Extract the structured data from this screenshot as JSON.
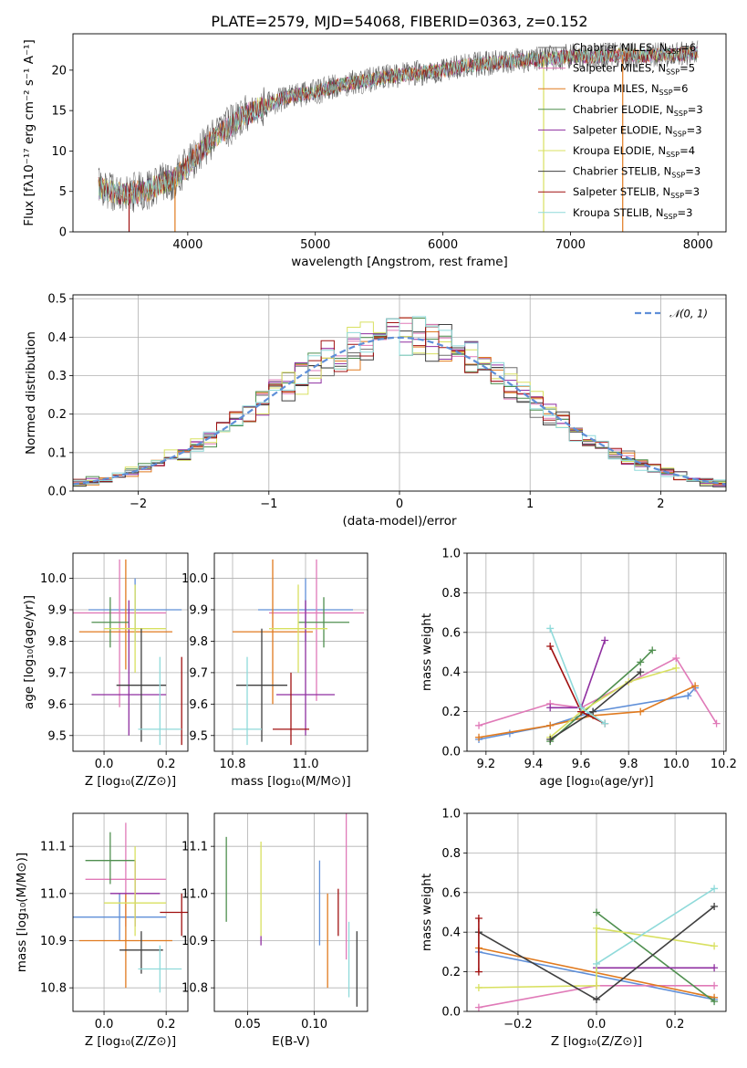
{
  "figure": {
    "title": "PLATE=2579, MJD=54068, FIBERID=0363, z=0.152"
  },
  "colors": {
    "chabrier_miles": "#6f6f6f",
    "salpeter_miles": "#e07ab8",
    "kroupa_miles": "#e07a1f",
    "chabrier_elodie": "#4f8f4f",
    "salpeter_elodie": "#8f2fa0",
    "kroupa_elodie": "#d8e060",
    "chabrier_stelib": "#3f3f3f",
    "salpeter_stelib": "#a01010",
    "kroupa_stelib": "#8fdada",
    "normal": "#5f8fd8"
  },
  "chart_data": [
    {
      "id": "spectrum",
      "type": "line",
      "xlabel": "wavelength [Angstrom, rest frame]",
      "ylabel": "Flux [fλ10⁻¹⁷ erg cm⁻² s⁻¹ A⁻¹]",
      "xlim": [
        3100,
        8220
      ],
      "ylim": [
        0,
        24.5
      ],
      "xticks": [
        "4000",
        "5000",
        "6000",
        "7000",
        "8000"
      ],
      "yticks": [
        "0",
        "5",
        "10",
        "15",
        "20"
      ],
      "grid": false,
      "legend_position": "top-right",
      "continuum": {
        "x": [
          3300,
          3500,
          3700,
          3800,
          3900,
          4000,
          4100,
          4200,
          4400,
          4600,
          4800,
          5000,
          5200,
          5400,
          5600,
          5800,
          6000,
          6200,
          6400,
          6600,
          6800,
          7000,
          7200,
          7400,
          7600,
          7800,
          8000
        ],
        "y": [
          5.4,
          4.6,
          5.2,
          6.0,
          6.6,
          8.2,
          10.0,
          11.5,
          14.0,
          15.6,
          16.8,
          17.3,
          18.2,
          18.7,
          19.3,
          19.6,
          20.0,
          20.6,
          20.9,
          21.2,
          21.4,
          21.7,
          21.7,
          21.9,
          21.8,
          21.9,
          22.1
        ]
      },
      "series": [
        {
          "name": "Chabrier MILES, N",
          "sub": "SSP",
          "suffix": "=6",
          "color_key": "chabrier_miles"
        },
        {
          "name": "Salpeter MILES, N",
          "sub": "SSP",
          "suffix": "=5",
          "color_key": "salpeter_miles"
        },
        {
          "name": "Kroupa MILES, N",
          "sub": "SSP",
          "suffix": "=6",
          "color_key": "kroupa_miles"
        },
        {
          "name": "Chabrier ELODIE, N",
          "sub": "SSP",
          "suffix": "=3",
          "color_key": "chabrier_elodie"
        },
        {
          "name": "Salpeter ELODIE, N",
          "sub": "SSP",
          "suffix": "=3",
          "color_key": "salpeter_elodie"
        },
        {
          "name": "Kroupa ELODIE, N",
          "sub": "SSP",
          "suffix": "=4",
          "color_key": "kroupa_elodie"
        },
        {
          "name": "Chabrier STELIB, N",
          "sub": "SSP",
          "suffix": "=3",
          "color_key": "chabrier_stelib"
        },
        {
          "name": "Salpeter STELIB, N",
          "sub": "SSP",
          "suffix": "=3",
          "color_key": "salpeter_stelib"
        },
        {
          "name": "Kroupa STELIB, N",
          "sub": "SSP",
          "suffix": "=3",
          "color_key": "kroupa_stelib"
        }
      ],
      "drops": [
        {
          "x": 3540,
          "color_key": "salpeter_stelib"
        },
        {
          "x": 3900,
          "color_key": "kroupa_miles"
        },
        {
          "x": 6790,
          "color_key": "kroupa_elodie"
        },
        {
          "x": 7410,
          "color_key": "kroupa_miles"
        }
      ]
    },
    {
      "id": "residuals",
      "type": "histogram",
      "xlabel": "(data-model)/error",
      "ylabel": "Normed distribution",
      "xlim": [
        -2.5,
        2.5
      ],
      "ylim": [
        0,
        0.51
      ],
      "xticks": [
        "−2",
        "−1",
        "0",
        "1",
        "2"
      ],
      "yticks": [
        "0.0",
        "0.1",
        "0.2",
        "0.3",
        "0.4",
        "0.5"
      ],
      "grid": true,
      "legend_position": "top-right",
      "bin_width": 0.1,
      "normal_curve": {
        "name": "𝒩(0, 1)",
        "color_key": "normal"
      }
    },
    {
      "id": "age_vs_Z",
      "type": "errorbar",
      "xlabel": "Z [log₁₀(Z/Z⊙)]",
      "ylabel": "age  [log₁₀(age/yr)]",
      "xlim": [
        -0.1,
        0.27
      ],
      "ylim": [
        9.45,
        10.08
      ],
      "xticks": [
        "0.0",
        "0.2"
      ],
      "yticks": [
        "9.5",
        "9.6",
        "9.7",
        "9.8",
        "9.9",
        "10.0"
      ],
      "grid": true,
      "points": [
        {
          "x": 0.1,
          "xerr": 0.15,
          "y": 9.9,
          "yerr_lo": 0.1,
          "yerr_hi": 0.1,
          "color_key": "normal"
        },
        {
          "x": 0.05,
          "xerr": 0.15,
          "y": 9.89,
          "yerr_lo": 0.3,
          "yerr_hi": 0.17,
          "color_key": "salpeter_miles"
        },
        {
          "x": 0.07,
          "xerr": 0.15,
          "y": 9.83,
          "yerr_lo": 0.12,
          "yerr_hi": 0.23,
          "color_key": "kroupa_miles"
        },
        {
          "x": 0.02,
          "xerr": 0.06,
          "y": 9.86,
          "yerr_lo": 0.08,
          "yerr_hi": 0.08,
          "color_key": "chabrier_elodie"
        },
        {
          "x": 0.08,
          "xerr": 0.12,
          "y": 9.63,
          "yerr_lo": 0.13,
          "yerr_hi": 0.3,
          "color_key": "salpeter_elodie"
        },
        {
          "x": 0.1,
          "xerr": 0.1,
          "y": 9.84,
          "yerr_lo": 0.14,
          "yerr_hi": 0.14,
          "color_key": "kroupa_elodie"
        },
        {
          "x": 0.12,
          "xerr": 0.08,
          "y": 9.66,
          "yerr_lo": 0.18,
          "yerr_hi": 0.18,
          "color_key": "chabrier_stelib"
        },
        {
          "x": 0.25,
          "xerr": 0.0,
          "y": 9.52,
          "yerr_lo": 0.05,
          "yerr_hi": 0.23,
          "color_key": "salpeter_stelib"
        },
        {
          "x": 0.18,
          "xerr": 0.07,
          "y": 9.52,
          "yerr_lo": 0.05,
          "yerr_hi": 0.23,
          "color_key": "kroupa_stelib"
        }
      ]
    },
    {
      "id": "age_vs_mass",
      "type": "errorbar",
      "xlabel": "mass [log₁₀(M/M⊙)]",
      "ylabel": "",
      "xlim": [
        10.75,
        11.17
      ],
      "ylim": [
        9.45,
        10.08
      ],
      "xticks": [
        "10.8",
        "11.0"
      ],
      "yticks": [
        "9.5",
        "9.6",
        "9.7",
        "9.8",
        "9.9",
        "10.0"
      ],
      "grid": true,
      "points": [
        {
          "x": 11.0,
          "xerr": 0.13,
          "y": 9.9,
          "yerr_lo": 0.1,
          "yerr_hi": 0.1,
          "color_key": "normal"
        },
        {
          "x": 11.03,
          "xerr": 0.13,
          "y": 9.89,
          "yerr_lo": 0.28,
          "yerr_hi": 0.17,
          "color_key": "salpeter_miles"
        },
        {
          "x": 10.91,
          "xerr": 0.11,
          "y": 9.83,
          "yerr_lo": 0.23,
          "yerr_hi": 0.23,
          "color_key": "kroupa_miles"
        },
        {
          "x": 11.05,
          "xerr": 0.07,
          "y": 9.86,
          "yerr_lo": 0.08,
          "yerr_hi": 0.08,
          "color_key": "chabrier_elodie"
        },
        {
          "x": 11.0,
          "xerr": 0.08,
          "y": 9.63,
          "yerr_lo": 0.13,
          "yerr_hi": 0.3,
          "color_key": "salpeter_elodie"
        },
        {
          "x": 10.98,
          "xerr": 0.08,
          "y": 9.84,
          "yerr_lo": 0.14,
          "yerr_hi": 0.14,
          "color_key": "kroupa_elodie"
        },
        {
          "x": 10.88,
          "xerr": 0.07,
          "y": 9.66,
          "yerr_lo": 0.18,
          "yerr_hi": 0.18,
          "color_key": "chabrier_stelib"
        },
        {
          "x": 10.96,
          "xerr": 0.05,
          "y": 9.52,
          "yerr_lo": 0.05,
          "yerr_hi": 0.18,
          "color_key": "salpeter_stelib"
        },
        {
          "x": 10.84,
          "xerr": 0.04,
          "y": 9.52,
          "yerr_lo": 0.05,
          "yerr_hi": 0.23,
          "color_key": "kroupa_stelib"
        }
      ]
    },
    {
      "id": "weight_vs_age",
      "type": "line",
      "xlabel": "age  [log₁₀(age/yr)]",
      "ylabel": "mass weight",
      "xlim": [
        9.12,
        10.21
      ],
      "ylim": [
        0,
        1
      ],
      "xticks": [
        "9.2",
        "9.4",
        "9.6",
        "9.8",
        "10.0",
        "10.2"
      ],
      "yticks": [
        "0.0",
        "0.2",
        "0.4",
        "0.6",
        "0.8",
        "1.0"
      ],
      "grid": true,
      "series": [
        {
          "color_key": "normal",
          "x": [
            9.17,
            9.3,
            9.47,
            9.65,
            10.05,
            10.08
          ],
          "y": [
            0.06,
            0.09,
            0.13,
            0.2,
            0.28,
            0.32
          ]
        },
        {
          "color_key": "salpeter_miles",
          "x": [
            9.17,
            9.47,
            9.6,
            10.0,
            10.17
          ],
          "y": [
            0.13,
            0.24,
            0.22,
            0.47,
            0.14
          ]
        },
        {
          "color_key": "kroupa_miles",
          "x": [
            9.17,
            9.47,
            9.65,
            9.85,
            10.08
          ],
          "y": [
            0.07,
            0.13,
            0.18,
            0.2,
            0.33
          ]
        },
        {
          "color_key": "chabrier_elodie",
          "x": [
            9.47,
            9.85,
            9.9
          ],
          "y": [
            0.05,
            0.45,
            0.51
          ]
        },
        {
          "color_key": "salpeter_elodie",
          "x": [
            9.47,
            9.6,
            9.7
          ],
          "y": [
            0.22,
            0.22,
            0.56
          ]
        },
        {
          "color_key": "kroupa_elodie",
          "x": [
            9.47,
            9.6,
            9.8,
            10.0
          ],
          "y": [
            0.07,
            0.2,
            0.35,
            0.42
          ]
        },
        {
          "color_key": "chabrier_stelib",
          "x": [
            9.47,
            9.65,
            9.85
          ],
          "y": [
            0.06,
            0.2,
            0.4
          ]
        },
        {
          "color_key": "salpeter_stelib",
          "x": [
            9.47,
            9.6,
            9.7
          ],
          "y": [
            0.53,
            0.2,
            0.14
          ]
        },
        {
          "color_key": "kroupa_stelib",
          "x": [
            9.47,
            9.6,
            9.7
          ],
          "y": [
            0.62,
            0.22,
            0.14
          ]
        }
      ]
    },
    {
      "id": "mass_vs_Z",
      "type": "errorbar",
      "xlabel": "Z [log₁₀(Z/Z⊙)]",
      "ylabel": "mass [log₁₀(M/M⊙)]",
      "xlim": [
        -0.1,
        0.27
      ],
      "ylim": [
        10.75,
        11.17
      ],
      "xticks": [
        "0.0",
        "0.2"
      ],
      "yticks": [
        "10.8",
        "10.9",
        "11.0",
        "11.1"
      ],
      "grid": true,
      "points": [
        {
          "x": 0.05,
          "xerr": 0.15,
          "y": 10.95,
          "yerr_lo": 0.05,
          "yerr_hi": 0.05,
          "color_key": "normal"
        },
        {
          "x": 0.07,
          "xerr": 0.13,
          "y": 11.03,
          "yerr_lo": 0.1,
          "yerr_hi": 0.12,
          "color_key": "salpeter_miles"
        },
        {
          "x": 0.07,
          "xerr": 0.15,
          "y": 10.9,
          "yerr_lo": 0.1,
          "yerr_hi": 0.1,
          "color_key": "kroupa_miles"
        },
        {
          "x": 0.02,
          "xerr": 0.08,
          "y": 11.07,
          "yerr_lo": 0.05,
          "yerr_hi": 0.06,
          "color_key": "chabrier_elodie"
        },
        {
          "x": 0.1,
          "xerr": 0.08,
          "y": 11.0,
          "yerr_lo": 0.07,
          "yerr_hi": 0.07,
          "color_key": "salpeter_elodie"
        },
        {
          "x": 0.1,
          "xerr": 0.1,
          "y": 10.98,
          "yerr_lo": 0.07,
          "yerr_hi": 0.12,
          "color_key": "kroupa_elodie"
        },
        {
          "x": 0.12,
          "xerr": 0.07,
          "y": 10.88,
          "yerr_lo": 0.05,
          "yerr_hi": 0.04,
          "color_key": "chabrier_stelib"
        },
        {
          "x": 0.25,
          "xerr": 0.07,
          "y": 10.96,
          "yerr_lo": 0.05,
          "yerr_hi": 0.04,
          "color_key": "salpeter_stelib"
        },
        {
          "x": 0.18,
          "xerr": 0.07,
          "y": 10.84,
          "yerr_lo": 0.05,
          "yerr_hi": 0.05,
          "color_key": "kroupa_stelib"
        }
      ]
    },
    {
      "id": "mass_vs_ebv",
      "type": "errorbar",
      "xlabel": "E(B-V)",
      "ylabel": "",
      "xlim": [
        0.025,
        0.14
      ],
      "ylim": [
        10.75,
        11.17
      ],
      "xticks": [
        "0.05",
        "0.10"
      ],
      "yticks": [
        "10.8",
        "10.9",
        "11.0",
        "11.1"
      ],
      "grid": true,
      "points": [
        {
          "x": 0.104,
          "y": 10.95,
          "yerr_lo": 0.06,
          "yerr_hi": 0.12,
          "color_key": "normal"
        },
        {
          "x": 0.124,
          "y": 11.03,
          "yerr_lo": 0.17,
          "yerr_hi": 0.14,
          "color_key": "salpeter_miles"
        },
        {
          "x": 0.11,
          "y": 10.9,
          "yerr_lo": 0.1,
          "yerr_hi": 0.1,
          "color_key": "kroupa_miles"
        },
        {
          "x": 0.034,
          "y": 11.03,
          "yerr_lo": 0.09,
          "yerr_hi": 0.09,
          "color_key": "chabrier_elodie"
        },
        {
          "x": 0.06,
          "y": 10.9,
          "yerr_lo": 0.01,
          "yerr_hi": 0.01,
          "color_key": "salpeter_elodie"
        },
        {
          "x": 0.06,
          "y": 11.01,
          "yerr_lo": 0.1,
          "yerr_hi": 0.1,
          "color_key": "kroupa_elodie"
        },
        {
          "x": 0.132,
          "y": 10.84,
          "yerr_lo": 0.08,
          "yerr_hi": 0.08,
          "color_key": "chabrier_stelib"
        },
        {
          "x": 0.118,
          "y": 10.96,
          "yerr_lo": 0.05,
          "yerr_hi": 0.05,
          "color_key": "salpeter_stelib"
        },
        {
          "x": 0.126,
          "y": 10.86,
          "yerr_lo": 0.08,
          "yerr_hi": 0.08,
          "color_key": "kroupa_stelib"
        }
      ]
    },
    {
      "id": "weight_vs_Z",
      "type": "line",
      "xlabel": "Z [log₁₀(Z/Z⊙)]",
      "ylabel": "mass weight",
      "xlim": [
        -0.33,
        0.33
      ],
      "ylim": [
        0,
        1
      ],
      "xticks": [
        "−0.2",
        "0.0",
        "0.2"
      ],
      "yticks": [
        "0.0",
        "0.2",
        "0.4",
        "0.6",
        "0.8",
        "1.0"
      ],
      "grid": true,
      "series": [
        {
          "color_key": "normal",
          "x": [
            -0.3,
            0.3
          ],
          "y": [
            0.3,
            0.06
          ]
        },
        {
          "color_key": "salpeter_miles",
          "x": [
            -0.3,
            0.0,
            0.3
          ],
          "y": [
            0.02,
            0.13,
            0.13
          ]
        },
        {
          "color_key": "kroupa_miles",
          "x": [
            -0.3,
            0.3
          ],
          "y": [
            0.32,
            0.07
          ]
        },
        {
          "color_key": "chabrier_elodie",
          "x": [
            0.0,
            0.3
          ],
          "y": [
            0.5,
            0.05
          ]
        },
        {
          "color_key": "salpeter_elodie",
          "x": [
            0.0,
            0.3
          ],
          "y": [
            0.22,
            0.22
          ]
        },
        {
          "color_key": "kroupa_elodie",
          "x": [
            -0.3,
            0.0,
            0.0,
            0.3
          ],
          "y": [
            0.12,
            0.13,
            0.42,
            0.33
          ]
        },
        {
          "color_key": "chabrier_stelib",
          "x": [
            -0.3,
            0.0,
            0.3
          ],
          "y": [
            0.4,
            0.06,
            0.53
          ]
        },
        {
          "color_key": "salpeter_stelib",
          "x": [
            -0.3,
            -0.3
          ],
          "y": [
            0.2,
            0.47
          ]
        },
        {
          "color_key": "kroupa_stelib",
          "x": [
            0.0,
            0.3
          ],
          "y": [
            0.24,
            0.62
          ]
        }
      ]
    }
  ]
}
